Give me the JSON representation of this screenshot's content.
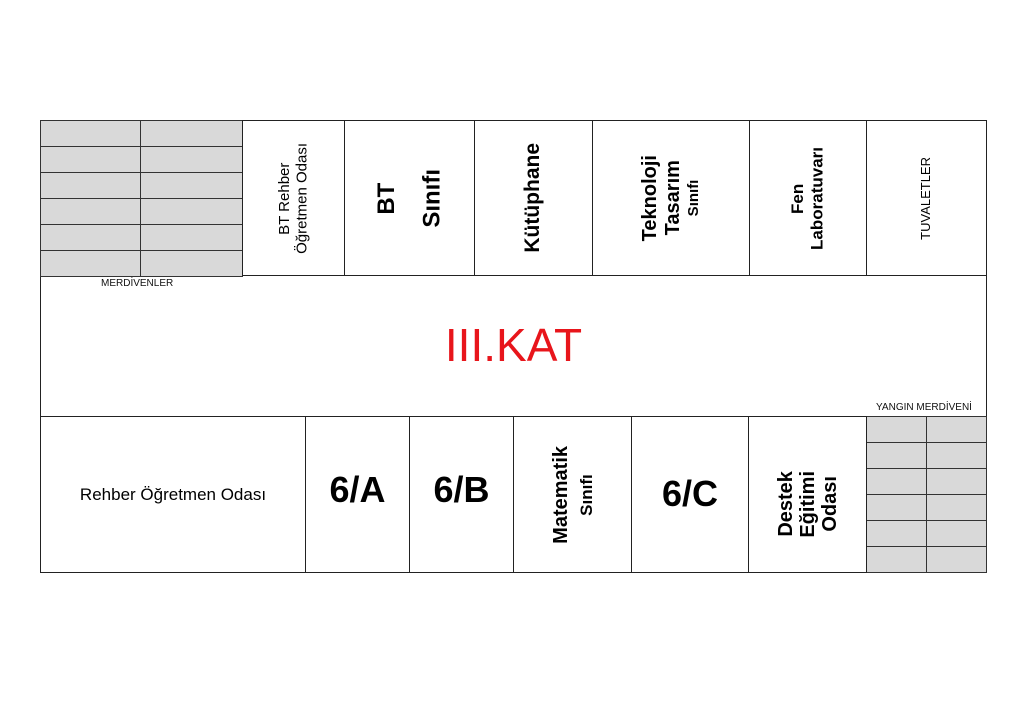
{
  "floor_title": "III.KAT",
  "title_color": "#e8151b",
  "labels": {
    "stairs": "MERDİVENLER",
    "fire_stairs": "YANGIN MERDİVENİ"
  },
  "top_rooms": [
    {
      "lines": [
        "BT Rehber",
        "Öğretmen Odası"
      ]
    },
    {
      "lines": [
        "BT",
        "Sınıfı"
      ]
    },
    {
      "lines": [
        "Kütüphane"
      ]
    },
    {
      "lines": [
        "Teknoloji",
        "Tasarım",
        "Sınıfı"
      ]
    },
    {
      "lines": [
        "Fen",
        "Laboratuvarı"
      ]
    },
    {
      "lines": [
        "TUVALETLER"
      ]
    }
  ],
  "bottom_rooms": [
    {
      "lines": [
        "Rehber Öğretmen Odası"
      ]
    },
    {
      "lines": [
        "6/A"
      ]
    },
    {
      "lines": [
        "6/B"
      ]
    },
    {
      "lines": [
        "Matematik",
        "Sınıfı"
      ]
    },
    {
      "lines": [
        "6/C"
      ]
    },
    {
      "lines": [
        "Destek",
        "Eğitimi",
        "Odası"
      ]
    }
  ]
}
